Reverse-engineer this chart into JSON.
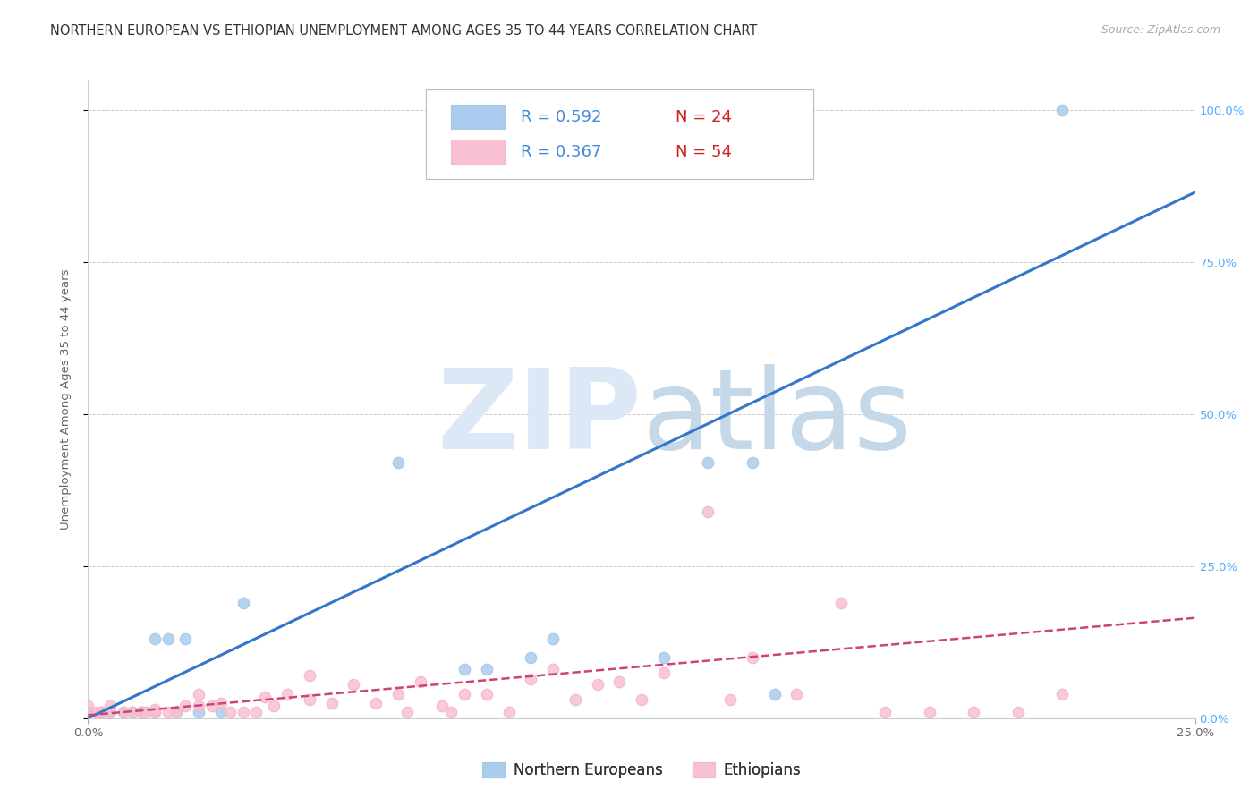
{
  "title": "NORTHERN EUROPEAN VS ETHIOPIAN UNEMPLOYMENT AMONG AGES 35 TO 44 YEARS CORRELATION CHART",
  "source": "Source: ZipAtlas.com",
  "ylabel": "Unemployment Among Ages 35 to 44 years",
  "xlim": [
    0.0,
    0.25
  ],
  "ylim": [
    0.0,
    1.05
  ],
  "xtick_labels": [
    "0.0%",
    "25.0%"
  ],
  "ytick_right_labels": [
    "0.0%",
    "25.0%",
    "50.0%",
    "75.0%",
    "100.0%"
  ],
  "ytick_vals": [
    0.0,
    0.25,
    0.5,
    0.75,
    1.0
  ],
  "xtick_vals": [
    0.0,
    0.25
  ],
  "watermark_zip": "ZIP",
  "watermark_atlas": "atlas",
  "blue_color": "#a8c8e8",
  "pink_color": "#f4b8c8",
  "blue_fill_color": "#aaccee",
  "pink_fill_color": "#f8c0d0",
  "blue_line_color": "#3377cc",
  "pink_line_color": "#cc4477",
  "legend_blue_r": "R = 0.592",
  "legend_blue_n": "N = 24",
  "legend_pink_r": "R = 0.367",
  "legend_pink_n": "N = 54",
  "legend_label_blue": "Northern Europeans",
  "legend_label_pink": "Ethiopians",
  "blue_scatter_x": [
    0.0,
    0.003,
    0.005,
    0.008,
    0.01,
    0.012,
    0.015,
    0.015,
    0.018,
    0.02,
    0.022,
    0.025,
    0.03,
    0.035,
    0.07,
    0.085,
    0.09,
    0.1,
    0.105,
    0.13,
    0.14,
    0.15,
    0.155,
    0.22
  ],
  "blue_scatter_y": [
    0.01,
    0.01,
    0.01,
    0.01,
    0.01,
    0.01,
    0.01,
    0.13,
    0.13,
    0.01,
    0.13,
    0.01,
    0.01,
    0.19,
    0.42,
    0.08,
    0.08,
    0.1,
    0.13,
    0.1,
    0.42,
    0.42,
    0.04,
    1.0
  ],
  "pink_scatter_x": [
    0.0,
    0.002,
    0.003,
    0.005,
    0.005,
    0.008,
    0.01,
    0.012,
    0.013,
    0.015,
    0.015,
    0.018,
    0.02,
    0.022,
    0.025,
    0.025,
    0.028,
    0.03,
    0.032,
    0.035,
    0.038,
    0.04,
    0.042,
    0.045,
    0.05,
    0.05,
    0.055,
    0.06,
    0.065,
    0.07,
    0.072,
    0.075,
    0.08,
    0.082,
    0.085,
    0.09,
    0.095,
    0.1,
    0.105,
    0.11,
    0.115,
    0.12,
    0.125,
    0.13,
    0.14,
    0.145,
    0.15,
    0.16,
    0.17,
    0.18,
    0.19,
    0.2,
    0.21,
    0.22
  ],
  "pink_scatter_y": [
    0.02,
    0.01,
    0.01,
    0.01,
    0.02,
    0.01,
    0.01,
    0.01,
    0.01,
    0.01,
    0.015,
    0.01,
    0.01,
    0.02,
    0.02,
    0.04,
    0.02,
    0.025,
    0.01,
    0.01,
    0.01,
    0.035,
    0.02,
    0.04,
    0.07,
    0.03,
    0.025,
    0.055,
    0.025,
    0.04,
    0.01,
    0.06,
    0.02,
    0.01,
    0.04,
    0.04,
    0.01,
    0.065,
    0.08,
    0.03,
    0.055,
    0.06,
    0.03,
    0.075,
    0.34,
    0.03,
    0.1,
    0.04,
    0.19,
    0.01,
    0.01,
    0.01,
    0.01,
    0.04
  ],
  "blue_trend_x": [
    0.0,
    0.25
  ],
  "blue_trend_y": [
    0.0,
    0.865
  ],
  "pink_trend_x": [
    0.0,
    0.25
  ],
  "pink_trend_y": [
    0.005,
    0.165
  ],
  "marker_size": 80,
  "title_fontsize": 10.5,
  "axis_label_fontsize": 9.5,
  "tick_fontsize": 9.5,
  "legend_fontsize": 12,
  "source_fontsize": 9,
  "grid_color": "#cccccc",
  "background_color": "#ffffff",
  "right_tick_color": "#55aaff"
}
